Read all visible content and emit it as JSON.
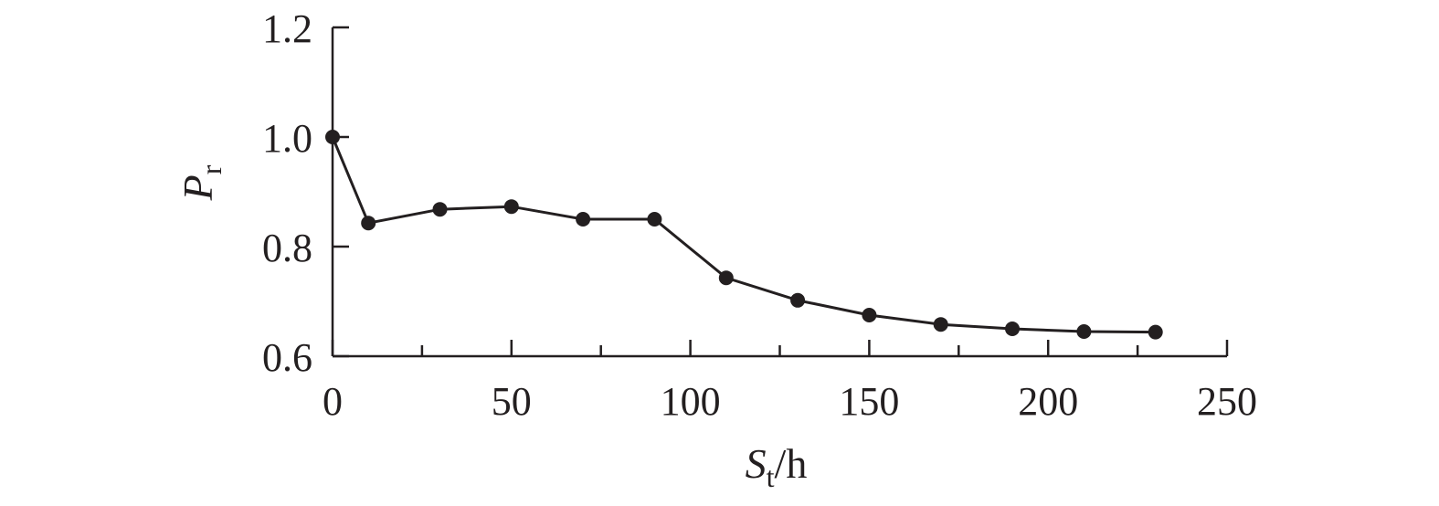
{
  "chart_data": {
    "type": "line",
    "title": "",
    "xlabel": {
      "main": "S",
      "sub": "t",
      "unit": "/h"
    },
    "ylabel": {
      "main": "P",
      "sub": "r"
    },
    "xlim": [
      0,
      250
    ],
    "ylim": [
      0.6,
      1.2
    ],
    "x_ticks": [
      0,
      50,
      100,
      150,
      200,
      250
    ],
    "x_minor_ticks": [
      25,
      75,
      125,
      175,
      225
    ],
    "y_ticks": [
      0.6,
      0.8,
      1.0,
      1.2
    ],
    "y_tick_labels": [
      "0.6",
      "0.8",
      "1.0",
      "1.2"
    ],
    "grid": false,
    "series": [
      {
        "x": [
          0,
          10,
          30,
          50,
          70,
          90,
          110,
          130,
          150,
          170,
          190,
          210,
          230
        ],
        "y": [
          1.0,
          0.843,
          0.868,
          0.873,
          0.85,
          0.85,
          0.743,
          0.702,
          0.675,
          0.658,
          0.65,
          0.645,
          0.644
        ],
        "color": "#231f20"
      }
    ]
  }
}
